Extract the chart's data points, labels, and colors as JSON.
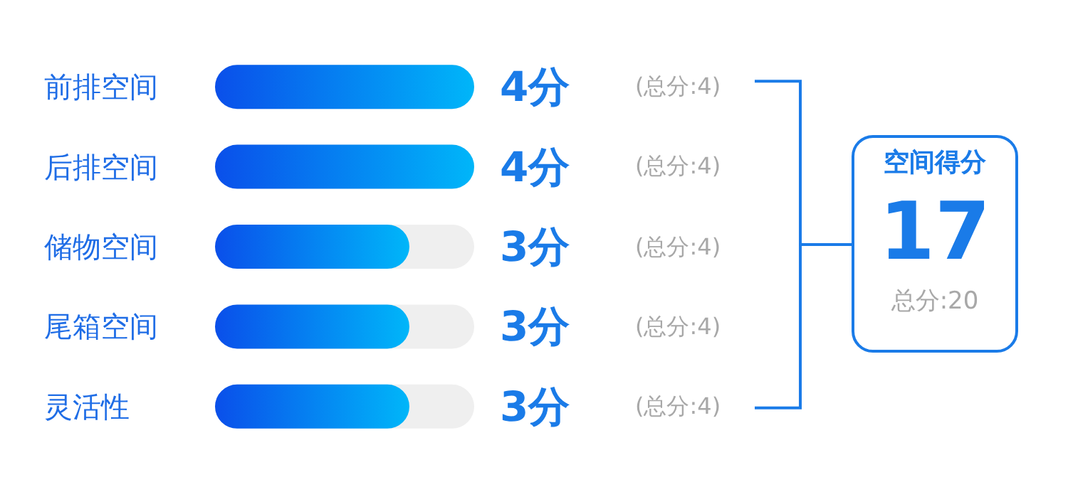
{
  "chart_data": {
    "type": "bar",
    "orientation": "horizontal",
    "categories": [
      "前排空间",
      "后排空间",
      "储物空间",
      "尾箱空间",
      "灵活性"
    ],
    "values": [
      4,
      4,
      3,
      3,
      3
    ],
    "value_labels": [
      "4分",
      "4分",
      "3分",
      "3分",
      "3分"
    ],
    "color": "#0a4fea",
    "xlim": [
      0,
      4
    ],
    "tick_labels": "y",
    "annotations": [
      "(总分:4)",
      "(总分:4)",
      "(总分:4)",
      "(总分:4)",
      "(总分:4)",
      "空间得分",
      "17",
      "总分:20"
    ]
  }
}
